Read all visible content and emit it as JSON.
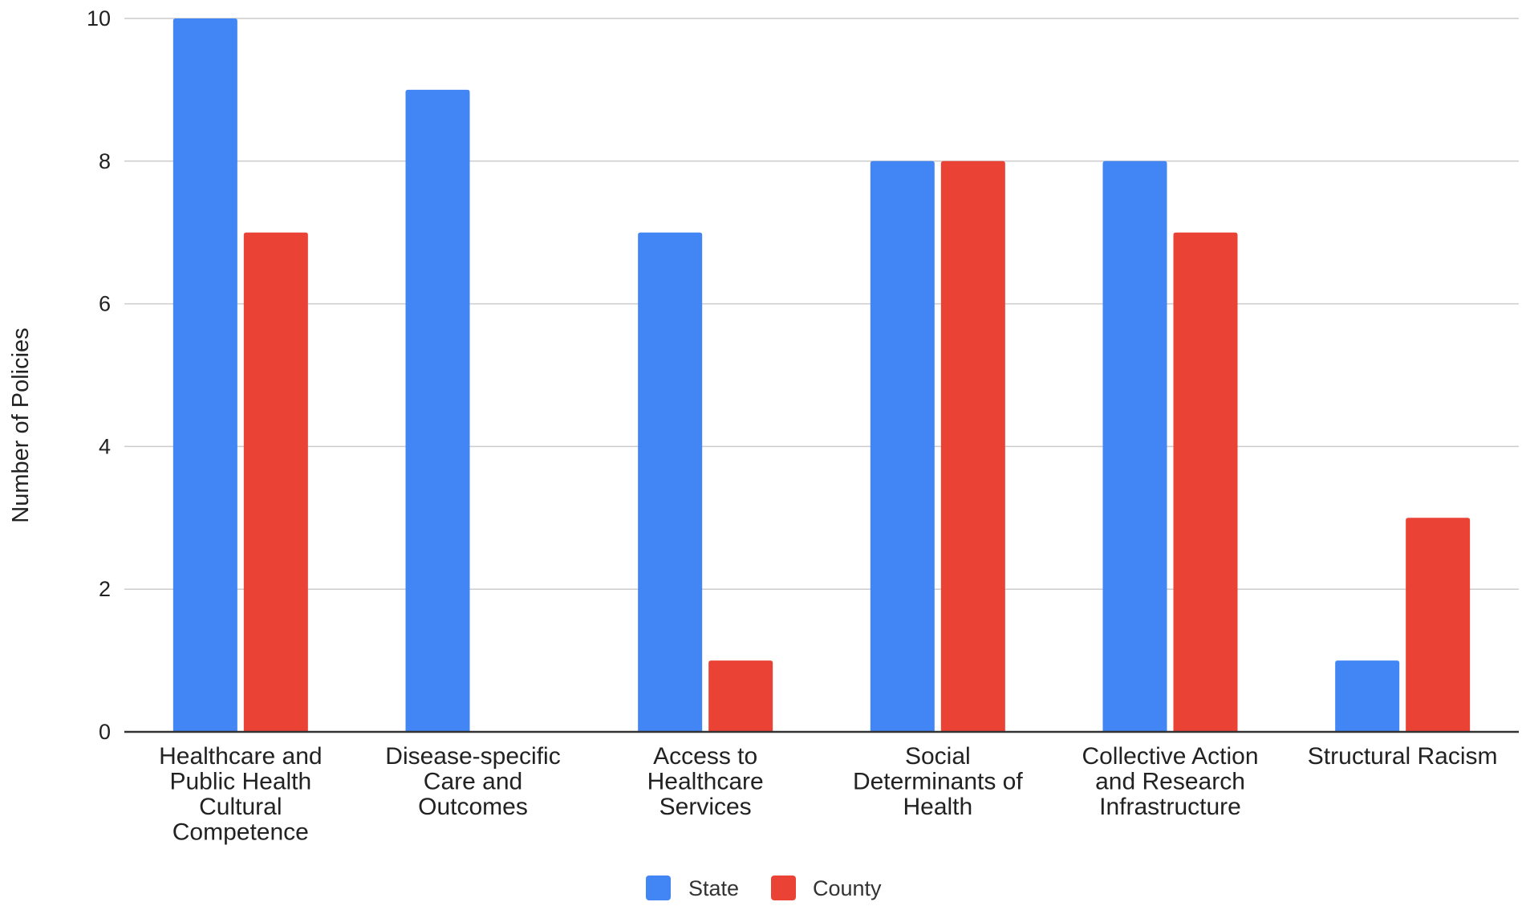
{
  "chart_data": {
    "type": "bar",
    "title": "",
    "xlabel": "",
    "ylabel": "Number of Policies",
    "ylim": [
      0,
      10
    ],
    "yticks": [
      0,
      2,
      4,
      6,
      8,
      10
    ],
    "grid": true,
    "legend_position": "bottom",
    "categories": [
      [
        "Healthcare and",
        "Public Health",
        "Cultural",
        "Competence"
      ],
      [
        "Disease-specific",
        "Care and",
        "Outcomes"
      ],
      [
        "Access to",
        "Healthcare",
        "Services"
      ],
      [
        "Social",
        "Determinants of",
        "Health"
      ],
      [
        "Collective Action",
        "and Research",
        "Infrastructure"
      ],
      [
        "Structural Racism"
      ]
    ],
    "series": [
      {
        "name": "State",
        "color": "#4285F4",
        "values": [
          10,
          9,
          7,
          8,
          8,
          1
        ]
      },
      {
        "name": "County",
        "color": "#EA4335",
        "values": [
          7,
          0,
          1,
          8,
          7,
          3
        ]
      }
    ]
  }
}
